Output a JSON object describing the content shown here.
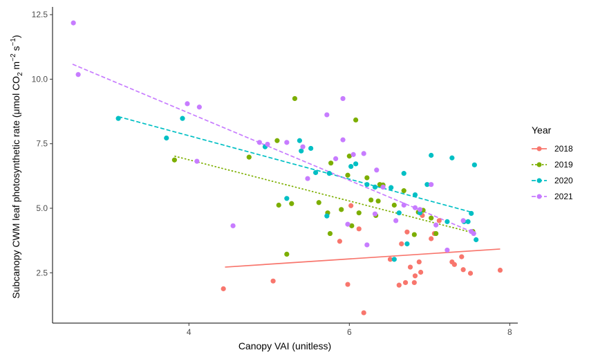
{
  "chart_data": {
    "type": "scatter",
    "xlabel": "Canopy VAI (unitless)",
    "ylabel": {
      "prefix": "Subcanopy CWM leaf photosynthetic rate (",
      "mu": "μ",
      "mol": "mol CO",
      "sub2": "2",
      "m": " m",
      "sup_m": "−2",
      "s": " s",
      "sup_s": "−1",
      "close": ")"
    },
    "xlim": [
      2.3,
      8.1
    ],
    "ylim": [
      0.55,
      12.8
    ],
    "x_ticks": [
      {
        "value": 4,
        "label": "4"
      },
      {
        "value": 6,
        "label": "6"
      },
      {
        "value": 8,
        "label": "8"
      }
    ],
    "y_ticks": [
      {
        "value": 2.5,
        "label": "2.5"
      },
      {
        "value": 5.0,
        "label": "5.0"
      },
      {
        "value": 7.5,
        "label": "7.5"
      },
      {
        "value": 10.0,
        "label": "10.0"
      },
      {
        "value": 12.5,
        "label": "12.5"
      }
    ],
    "grid": false,
    "legend": {
      "title": "Year",
      "position": "right"
    },
    "series": [
      {
        "name": "2018",
        "color": "#F8766D",
        "dash": "",
        "trend": [
          [
            4.45,
            2.72
          ],
          [
            7.88,
            3.42
          ]
        ],
        "points": [
          [
            4.43,
            1.88
          ],
          [
            5.05,
            2.18
          ],
          [
            5.88,
            3.72
          ],
          [
            5.98,
            2.05
          ],
          [
            6.02,
            5.1
          ],
          [
            6.12,
            4.2
          ],
          [
            6.18,
            0.95
          ],
          [
            6.51,
            3.02
          ],
          [
            6.62,
            2.02
          ],
          [
            6.65,
            3.62
          ],
          [
            6.7,
            2.12
          ],
          [
            6.72,
            4.08
          ],
          [
            6.76,
            2.72
          ],
          [
            6.81,
            2.12
          ],
          [
            6.82,
            2.38
          ],
          [
            6.87,
            2.92
          ],
          [
            6.89,
            2.52
          ],
          [
            6.91,
            4.72
          ],
          [
            7.02,
            3.82
          ],
          [
            7.06,
            4.02
          ],
          [
            7.12,
            4.52
          ],
          [
            7.28,
            2.92
          ],
          [
            7.31,
            2.82
          ],
          [
            7.4,
            3.12
          ],
          [
            7.42,
            2.62
          ],
          [
            7.51,
            2.48
          ],
          [
            7.88,
            2.6
          ]
        ]
      },
      {
        "name": "2019",
        "color": "#7CAE00",
        "dash": "2.5,2.5",
        "trend": [
          [
            3.82,
            7.02
          ],
          [
            7.58,
            4.02
          ]
        ],
        "points": [
          [
            3.82,
            6.87
          ],
          [
            4.75,
            6.98
          ],
          [
            5.1,
            7.62
          ],
          [
            5.12,
            5.12
          ],
          [
            5.22,
            3.22
          ],
          [
            5.28,
            5.18
          ],
          [
            5.32,
            9.25
          ],
          [
            5.62,
            5.22
          ],
          [
            5.73,
            4.82
          ],
          [
            5.76,
            4.02
          ],
          [
            5.77,
            6.75
          ],
          [
            5.9,
            4.95
          ],
          [
            5.98,
            6.28
          ],
          [
            6.0,
            7.02
          ],
          [
            6.03,
            4.32
          ],
          [
            6.08,
            8.42
          ],
          [
            6.12,
            4.82
          ],
          [
            6.22,
            6.18
          ],
          [
            6.27,
            5.32
          ],
          [
            6.33,
            4.72
          ],
          [
            6.36,
            5.28
          ],
          [
            6.38,
            5.92
          ],
          [
            6.42,
            5.9
          ],
          [
            6.56,
            5.12
          ],
          [
            6.68,
            5.68
          ],
          [
            6.81,
            3.98
          ],
          [
            6.86,
            4.85
          ],
          [
            6.92,
            4.92
          ],
          [
            7.02,
            4.62
          ],
          [
            7.08,
            4.02
          ],
          [
            7.54,
            4.1
          ]
        ]
      },
      {
        "name": "2020",
        "color": "#00BFC4",
        "dash": "6,3",
        "trend": [
          [
            3.12,
            8.55
          ],
          [
            7.52,
            4.85
          ]
        ],
        "points": [
          [
            3.12,
            8.48
          ],
          [
            3.72,
            7.72
          ],
          [
            3.92,
            8.48
          ],
          [
            4.95,
            7.38
          ],
          [
            5.22,
            5.38
          ],
          [
            5.38,
            7.62
          ],
          [
            5.4,
            7.22
          ],
          [
            5.52,
            7.32
          ],
          [
            5.58,
            6.38
          ],
          [
            5.72,
            4.7
          ],
          [
            5.75,
            6.35
          ],
          [
            6.02,
            6.62
          ],
          [
            6.08,
            6.72
          ],
          [
            6.22,
            5.92
          ],
          [
            6.32,
            5.82
          ],
          [
            6.52,
            5.8
          ],
          [
            6.56,
            3.02
          ],
          [
            6.62,
            4.82
          ],
          [
            6.68,
            6.35
          ],
          [
            6.72,
            3.62
          ],
          [
            6.82,
            5.52
          ],
          [
            6.88,
            4.82
          ],
          [
            6.97,
            5.92
          ],
          [
            7.02,
            7.05
          ],
          [
            7.22,
            4.48
          ],
          [
            7.28,
            6.95
          ],
          [
            7.43,
            4.48
          ],
          [
            7.48,
            4.48
          ],
          [
            7.52,
            4.8
          ],
          [
            7.56,
            6.68
          ],
          [
            7.58,
            3.78
          ]
        ]
      },
      {
        "name": "2021",
        "color": "#C77CFF",
        "dash": "6,3",
        "trend": [
          [
            2.55,
            10.58
          ],
          [
            7.58,
            4.02
          ]
        ],
        "points": [
          [
            2.56,
            12.18
          ],
          [
            2.62,
            10.18
          ],
          [
            3.98,
            9.05
          ],
          [
            4.1,
            6.82
          ],
          [
            4.13,
            8.92
          ],
          [
            4.55,
            4.32
          ],
          [
            4.88,
            7.55
          ],
          [
            4.98,
            7.48
          ],
          [
            5.22,
            7.55
          ],
          [
            5.42,
            7.38
          ],
          [
            5.48,
            6.15
          ],
          [
            5.72,
            8.62
          ],
          [
            5.83,
            6.92
          ],
          [
            5.92,
            7.65
          ],
          [
            5.92,
            9.25
          ],
          [
            5.98,
            4.38
          ],
          [
            6.05,
            7.08
          ],
          [
            6.18,
            7.12
          ],
          [
            6.22,
            3.58
          ],
          [
            6.32,
            4.78
          ],
          [
            6.34,
            6.48
          ],
          [
            6.42,
            5.82
          ],
          [
            6.58,
            4.52
          ],
          [
            6.68,
            5.12
          ],
          [
            6.82,
            5.02
          ],
          [
            6.88,
            4.95
          ],
          [
            7.02,
            5.92
          ],
          [
            7.08,
            4.35
          ],
          [
            7.22,
            3.38
          ],
          [
            7.42,
            4.52
          ],
          [
            7.52,
            4.1
          ],
          [
            7.55,
            4.02
          ]
        ]
      }
    ]
  }
}
